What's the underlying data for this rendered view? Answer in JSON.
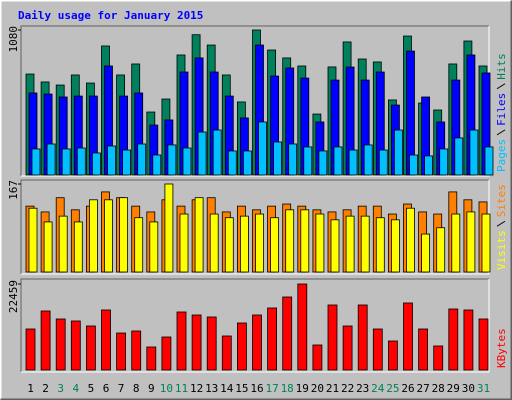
{
  "chart_data": [
    {
      "type": "bar",
      "title": "Daily usage for January 2015",
      "ylim": [
        0,
        1080
      ],
      "yticks": [
        1080
      ],
      "series": [
        {
          "name": "Hits",
          "color": "#00805c",
          "values": [
            752,
            693,
            670,
            745,
            685,
            961,
            745,
            827,
            469,
            566,
            894,
            1045,
            968,
            745,
            544,
            1080,
            931,
            872,
            812,
            454,
            805,
            991,
            864,
            842,
            559,
            1035,
            536,
            484,
            827,
            998,
            812
          ]
        },
        {
          "name": "Files",
          "color": "#0000ff",
          "values": [
            611,
            603,
            581,
            588,
            588,
            812,
            588,
            611,
            372,
            410,
            767,
            872,
            767,
            588,
            425,
            968,
            737,
            797,
            722,
            395,
            707,
            804,
            707,
            767,
            521,
            923,
            581,
            395,
            707,
            894,
            760
          ]
        },
        {
          "name": "Pages",
          "color": "#00c0ff",
          "values": [
            194,
            231,
            194,
            201,
            164,
            216,
            186,
            231,
            149,
            224,
            201,
            320,
            335,
            179,
            179,
            395,
            246,
            231,
            209,
            179,
            209,
            186,
            224,
            186,
            335,
            149,
            142,
            194,
            276,
            335,
            209
          ]
        }
      ]
    },
    {
      "type": "bar",
      "ylim": [
        0,
        167
      ],
      "yticks": [
        167
      ],
      "series": [
        {
          "name": "Sites",
          "color": "#ff8000",
          "values": [
            125,
            114,
            141,
            118,
            125,
            152,
            141,
            125,
            114,
            137,
            125,
            137,
            141,
            114,
            125,
            118,
            125,
            129,
            125,
            118,
            114,
            118,
            125,
            125,
            110,
            129,
            114,
            110,
            152,
            137,
            133
          ]
        },
        {
          "name": "Visits",
          "color": "#ffff00",
          "values": [
            121,
            95,
            106,
            95,
            137,
            137,
            141,
            103,
            95,
            167,
            110,
            141,
            110,
            103,
            106,
            110,
            103,
            118,
            118,
            110,
            99,
            106,
            106,
            103,
            99,
            121,
            72,
            84,
            110,
            114,
            110
          ]
        }
      ]
    },
    {
      "type": "bar",
      "ylim": [
        0,
        22459
      ],
      "yticks": [
        22459
      ],
      "categories": [
        "1",
        "2",
        "3",
        "4",
        "5",
        "6",
        "7",
        "8",
        "9",
        "10",
        "11",
        "12",
        "13",
        "14",
        "15",
        "16",
        "17",
        "18",
        "19",
        "20",
        "21",
        "22",
        "23",
        "24",
        "25",
        "26",
        "27",
        "28",
        "29",
        "30",
        "31"
      ],
      "category_colors": [
        "#000000",
        "#000000",
        "#00805c",
        "#00805c",
        "#000000",
        "#000000",
        "#000000",
        "#000000",
        "#000000",
        "#00805c",
        "#00805c",
        "#000000",
        "#000000",
        "#000000",
        "#000000",
        "#000000",
        "#00805c",
        "#00805c",
        "#000000",
        "#000000",
        "#000000",
        "#000000",
        "#000000",
        "#00805c",
        "#00805c",
        "#000000",
        "#000000",
        "#000000",
        "#000000",
        "#000000",
        "#00805c"
      ],
      "series": [
        {
          "name": "KBytes",
          "color": "#ff0000",
          "values": [
            10709,
            15411,
            13321,
            12799,
            11493,
            15672,
            9664,
            10187,
            6008,
            8620,
            15150,
            14366,
            13844,
            8881,
            12276,
            14366,
            16194,
            19068,
            22459,
            6530,
            16978,
            11493,
            16978,
            10709,
            7575,
            17500,
            10709,
            6269,
            15933,
            15672,
            13321
          ]
        }
      ]
    }
  ]
}
